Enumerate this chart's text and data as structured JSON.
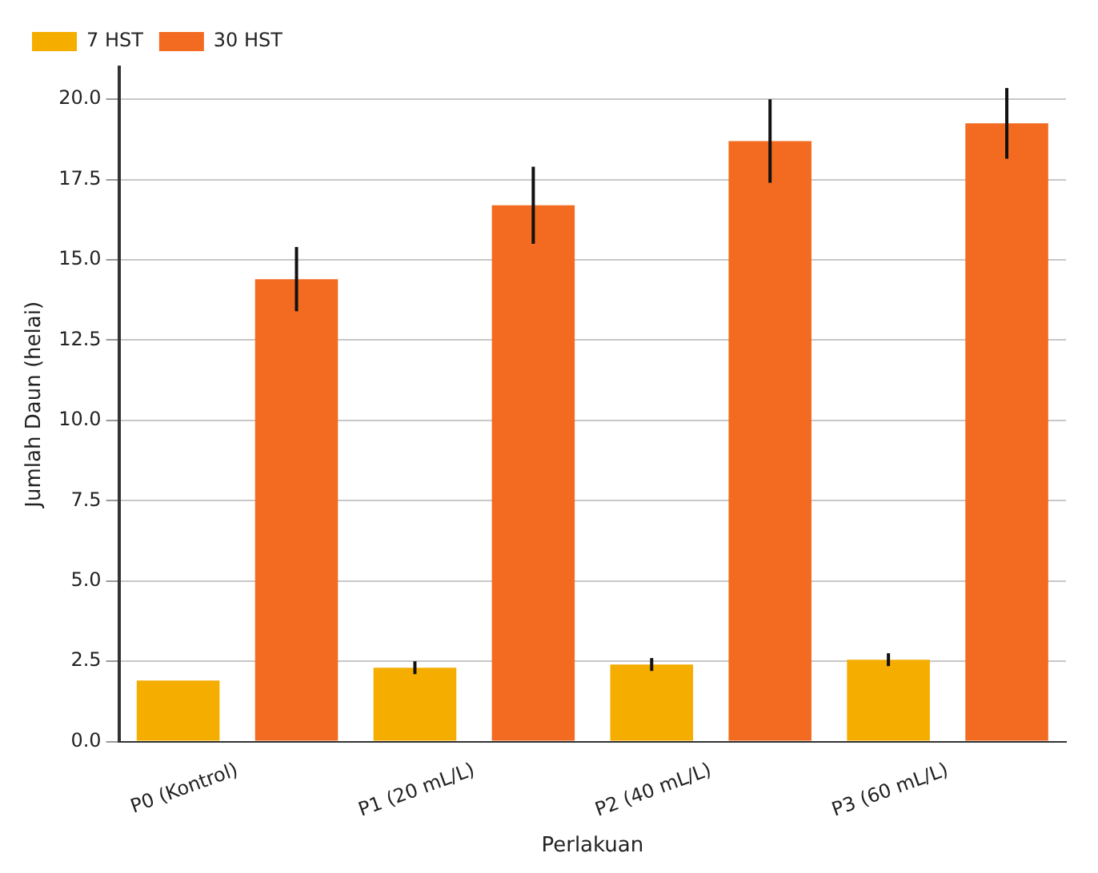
{
  "chart_data": {
    "type": "bar",
    "categories": [
      "P0 (Kontrol)",
      "P1 (20 mL/L)",
      "P2 (40 mL/L)",
      "P3 (60 mL/L)"
    ],
    "series": [
      {
        "name": "7 HST",
        "color": "#f5ad00",
        "values": [
          1.9,
          2.3,
          2.4,
          2.55
        ],
        "errors": [
          null,
          0.2,
          0.2,
          0.2
        ]
      },
      {
        "name": "30 HST",
        "color": "#f26b21",
        "values": [
          14.4,
          16.7,
          18.7,
          19.25
        ],
        "errors": [
          1.0,
          1.2,
          1.3,
          1.1
        ]
      }
    ],
    "xlabel": "Perlakuan",
    "ylabel": "Jumlah Daun (helai)",
    "ylim": [
      0,
      21
    ],
    "yticks": [
      {
        "value": 0,
        "label": "0.0"
      },
      2.5,
      {
        "value": 5,
        "label": "5.0"
      },
      7.5,
      {
        "value": 10,
        "label": "10.0"
      },
      12.5,
      {
        "value": 15,
        "label": "15.0"
      },
      17.5,
      {
        "value": 20,
        "label": "20.0"
      }
    ],
    "grid": "y",
    "legend": "top left"
  }
}
